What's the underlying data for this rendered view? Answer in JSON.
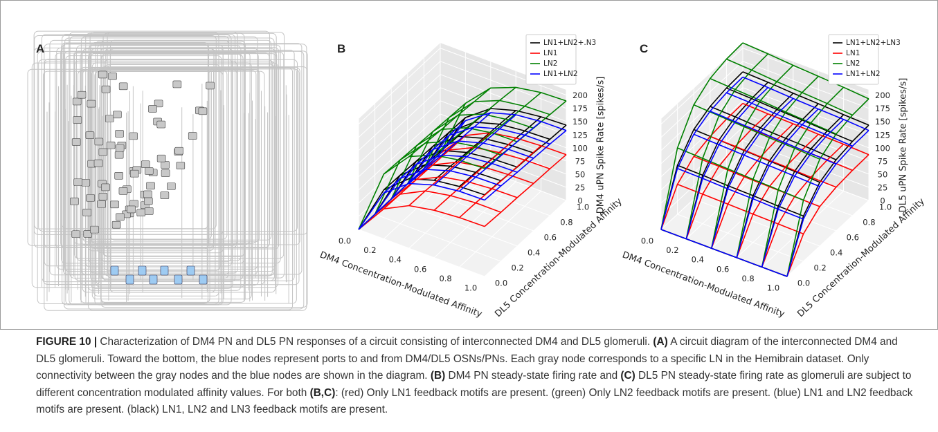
{
  "panel_a_label": "A",
  "chart_data": [
    {
      "type": "wireframe",
      "label": "B",
      "xlabel": "DM4 Concentration-Modulated Affinity",
      "ylabel": "DL5 Concentration-Modulated Affinity",
      "zlabel": "DM4 uPN Spike Rate [spikes/s]",
      "x": [
        0,
        0.2,
        0.4,
        0.6,
        0.8,
        1.0
      ],
      "y": [
        0,
        0.2,
        0.4,
        0.6,
        0.8,
        1.0
      ],
      "xlim": [
        0,
        1
      ],
      "ylim": [
        0,
        1
      ],
      "zlim": [
        0,
        210
      ],
      "xticks": [
        {
          "value": 0,
          "label": "0.0"
        },
        {
          "value": 0.2,
          "label": "0.2"
        },
        {
          "value": 0.4,
          "label": "0.4"
        },
        {
          "value": 0.6,
          "label": "0.6"
        },
        {
          "value": 0.8,
          "label": "0.8"
        },
        {
          "value": 1,
          "label": "1.0"
        }
      ],
      "yticks": [
        {
          "value": 0,
          "label": "0.0"
        },
        {
          "value": 0.2,
          "label": "0.2"
        },
        {
          "value": 0.4,
          "label": "0.4"
        },
        {
          "value": 0.6,
          "label": "0.6"
        },
        {
          "value": 0.8,
          "label": "0.8"
        },
        {
          "value": 1,
          "label": "1.0"
        }
      ],
      "zticks": [
        0,
        25,
        50,
        75,
        100,
        125,
        150,
        175,
        200
      ],
      "legend": "upper right",
      "series": [
        {
          "name": "LN1+LN2+.N3",
          "color": "#000000",
          "values": [
            [
              0,
              93,
              132,
              147,
              153,
              155
            ],
            [
              0,
              92,
              130,
              145,
              151,
              153
            ],
            [
              0,
              90,
              128,
              142,
              148,
              150
            ],
            [
              0,
              89,
              126,
              140,
              146,
              148
            ],
            [
              0,
              87,
              124,
              138,
              143,
              145
            ],
            [
              0,
              86,
              121,
              135,
              141,
              143
            ]
          ]
        },
        {
          "name": "LN1",
          "color": "#ff0000",
          "values": [
            [
              0,
              57,
              81,
              90,
              94,
              95
            ],
            [
              0,
              56,
              80,
              89,
              93,
              93
            ],
            [
              0,
              55,
              78,
              87,
              91,
              92
            ],
            [
              0,
              54,
              77,
              86,
              89,
              90
            ],
            [
              0,
              53,
              76,
              84,
              88,
              89
            ],
            [
              0,
              52,
              75,
              83,
              86,
              87
            ]
          ]
        },
        {
          "name": "LN2",
          "color": "#008000",
          "values": [
            [
              0,
              123,
              174,
              195,
              203,
              205
            ],
            [
              0,
              121,
              171,
              192,
              200,
              202
            ],
            [
              0,
              119,
              168,
              189,
              197,
              198
            ],
            [
              0,
              117,
              166,
              186,
              193,
              195
            ],
            [
              0,
              115,
              163,
              183,
              190,
              192
            ],
            [
              0,
              113,
              160,
              179,
              187,
              189
            ]
          ]
        },
        {
          "name": "LN1+LN2",
          "color": "#0000ff",
          "values": [
            [
              0,
              87,
              123,
              138,
              144,
              145
            ],
            [
              0,
              86,
              121,
              136,
              142,
              143
            ],
            [
              0,
              84,
              119,
              134,
              139,
              140
            ],
            [
              0,
              83,
              117,
              131,
              137,
              138
            ],
            [
              0,
              81,
              115,
              129,
              135,
              136
            ],
            [
              0,
              80,
              113,
              127,
              132,
              133
            ]
          ]
        }
      ]
    },
    {
      "type": "wireframe",
      "label": "C",
      "xlabel": "DM4 Concentration-Modulated Affinity",
      "ylabel": "DL5 Concentration-Modulated Affinity",
      "zlabel": "DL5 uPN Spike Rate [spikes/s]",
      "x": [
        0,
        0.2,
        0.4,
        0.6,
        0.8,
        1.0
      ],
      "y": [
        0,
        0.2,
        0.4,
        0.6,
        0.8,
        1.0
      ],
      "xlim": [
        0,
        1
      ],
      "ylim": [
        0,
        1
      ],
      "zlim": [
        0,
        210
      ],
      "xticks": [
        {
          "value": 0,
          "label": "0.0"
        },
        {
          "value": 0.2,
          "label": "0.2"
        },
        {
          "value": 0.4,
          "label": "0.4"
        },
        {
          "value": 0.6,
          "label": "0.6"
        },
        {
          "value": 0.8,
          "label": "0.8"
        },
        {
          "value": 1,
          "label": "1.0"
        }
      ],
      "yticks": [
        {
          "value": 0,
          "label": "0.0"
        },
        {
          "value": 0.2,
          "label": "0.2"
        },
        {
          "value": 0.4,
          "label": "0.4"
        },
        {
          "value": 0.6,
          "label": "0.6"
        },
        {
          "value": 0.8,
          "label": "0.8"
        },
        {
          "value": 1,
          "label": "1.0"
        }
      ],
      "zticks": [
        0,
        25,
        50,
        75,
        100,
        125,
        150,
        175,
        200
      ],
      "legend": "upper right",
      "series": [
        {
          "name": "LN1+LN2+LN3",
          "color": "#000000",
          "values": [
            [
              0,
              0,
              0,
              0,
              0,
              0
            ],
            [
              93,
              92,
              90,
              89,
              87,
              86
            ],
            [
              132,
              130,
              128,
              126,
              124,
              121
            ],
            [
              147,
              145,
              142,
              140,
              138,
              135
            ],
            [
              153,
              151,
              148,
              146,
              143,
              141
            ],
            [
              155,
              153,
              150,
              148,
              145,
              143
            ]
          ]
        },
        {
          "name": "LN1",
          "color": "#ff0000",
          "values": [
            [
              0,
              0,
              0,
              0,
              0,
              0
            ],
            [
              57,
              56,
              55,
              54,
              53,
              52
            ],
            [
              81,
              80,
              78,
              77,
              76,
              75
            ],
            [
              90,
              89,
              87,
              86,
              84,
              83
            ],
            [
              94,
              93,
              91,
              89,
              88,
              86
            ],
            [
              95,
              93,
              92,
              90,
              89,
              87
            ]
          ]
        },
        {
          "name": "LN2",
          "color": "#008000",
          "values": [
            [
              0,
              0,
              0,
              0,
              0,
              0
            ],
            [
              126,
              124,
              122,
              120,
              118,
              116
            ],
            [
              179,
              176,
              173,
              170,
              168,
              165
            ],
            [
              200,
              197,
              194,
              190,
              187,
              184
            ],
            [
              208,
              205,
              201,
              198,
              195,
              191
            ],
            [
              210,
              207,
              203,
              200,
              197,
              193
            ]
          ]
        },
        {
          "name": "LN1+LN2",
          "color": "#0000ff",
          "values": [
            [
              0,
              0,
              0,
              0,
              0,
              0
            ],
            [
              87,
              86,
              84,
              83,
              81,
              80
            ],
            [
              123,
              121,
              119,
              117,
              115,
              113
            ],
            [
              138,
              136,
              134,
              131,
              129,
              127
            ],
            [
              144,
              142,
              139,
              137,
              135,
              132
            ],
            [
              145,
              143,
              140,
              138,
              136,
              133
            ]
          ]
        }
      ]
    }
  ],
  "caption": [
    {
      "text": "FIGURE 10 |",
      "bold": true
    },
    {
      "text": " Characterization of DM4 PN and DL5 PN responses of a circuit consisting of interconnected DM4 and DL5 glomeruli. ",
      "bold": false
    },
    {
      "text": "(A)",
      "bold": true
    },
    {
      "text": " A circuit diagram of the interconnected DM4 and DL5 glomeruli. Toward the bottom, the blue nodes represent ports to and from DM4/DL5 OSNs/PNs. Each gray node corresponds to a specific LN in the Hemibrain dataset. Only connectivity between the gray nodes and the blue nodes are shown in the diagram. ",
      "bold": false
    },
    {
      "text": "(B)",
      "bold": true
    },
    {
      "text": " DM4 PN steady-state firing rate and ",
      "bold": false
    },
    {
      "text": "(C)",
      "bold": true
    },
    {
      "text": " DL5 PN steady-state firing rate as glomeruli are subject to different concentration modulated affinity values. For both ",
      "bold": false
    },
    {
      "text": "(B,C)",
      "bold": true
    },
    {
      "text": ": (red) Only LN1 feedback motifs are present. (green) Only LN2 feedback motifs are present. (blue) LN1 and LN2 feedback motifs are present. (black) LN1, LN2 and LN3 feedback motifs are present.",
      "bold": false
    }
  ]
}
